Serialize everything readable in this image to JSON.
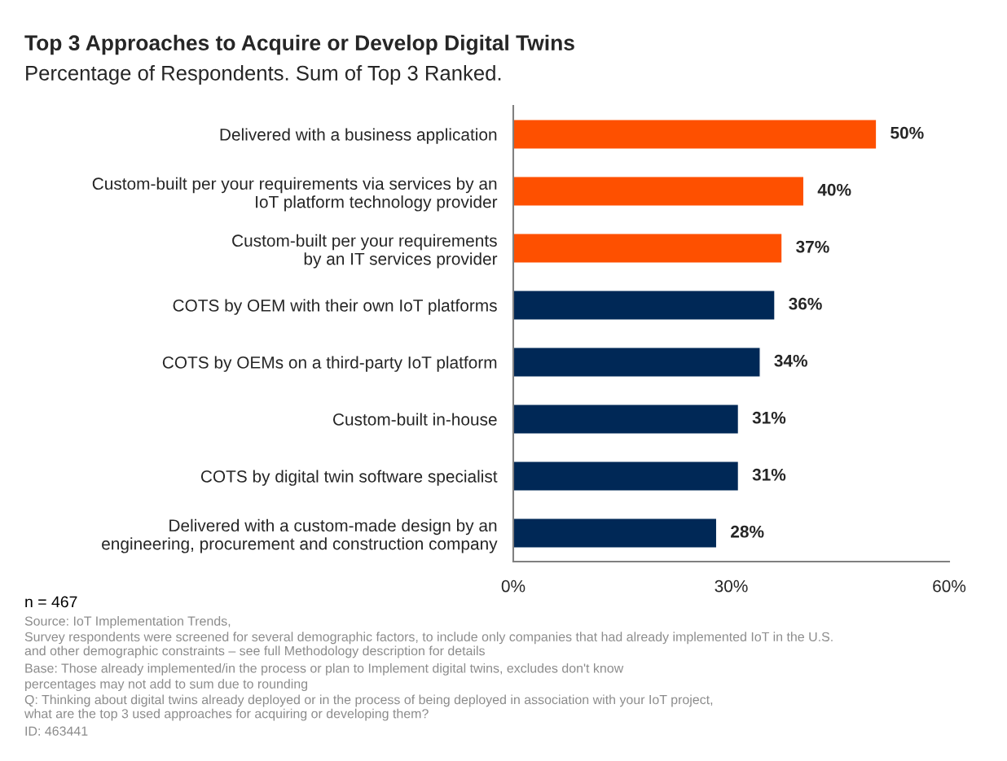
{
  "chart_data": {
    "type": "bar",
    "orientation": "horizontal",
    "title": "Top 3 Approaches to Acquire or Develop Digital Twins",
    "subtitle": "Percentage of Respondents. Sum of Top 3 Ranked.",
    "categories": [
      "Delivered with a business application",
      "Custom-built per your requirements via services by an\nIoT platform technology provider",
      "Custom-built per your requirements\nby an IT services provider",
      "COTS by OEM with their own IoT platforms",
      "COTS by OEMs on a third-party IoT platform",
      "Custom-built in-house",
      "COTS by digital twin software specialist",
      "Delivered with a custom-made design by an\nengineering, procurement and construction company"
    ],
    "values": [
      50,
      40,
      37,
      36,
      34,
      31,
      31,
      28
    ],
    "colors": [
      "#fe5000",
      "#fe5000",
      "#fe5000",
      "#002856",
      "#002856",
      "#002856",
      "#002856",
      "#002856"
    ],
    "value_labels": [
      "50%",
      "40%",
      "37%",
      "36%",
      "34%",
      "31%",
      "31%",
      "28%"
    ],
    "xlim": [
      0,
      60
    ],
    "xticks": [
      {
        "value": 0,
        "label": "0%"
      },
      {
        "value": 30,
        "label": "30%"
      },
      {
        "value": 60,
        "label": "60%"
      }
    ],
    "grid": false,
    "legend": false,
    "annotations": [
      "n = 467",
      "Source: IoT Implementation Trends,",
      "Survey respondents were screened for several demographic factors, to include only companies that had already implemented IoT in the U.S.\nand other demographic constraints – see full Methodology description for details",
      "Base: Those already implemented/in the process or plan to Implement digital twins, excludes don't know",
      "percentages may not add to sum due to rounding",
      "Q: Thinking about digital twins already deployed or in the process of being deployed in association with your IoT project,\nwhat are the top 3 used approaches for acquiring or developing them?",
      "ID: 463441"
    ]
  }
}
